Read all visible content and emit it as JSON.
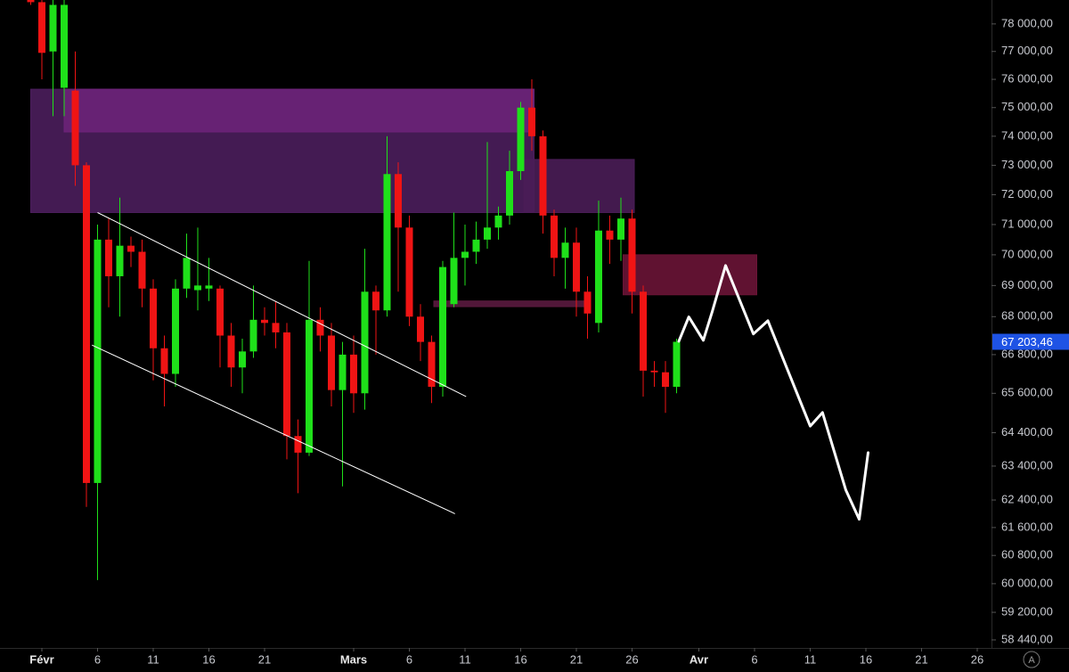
{
  "chart_data": {
    "type": "candlestick",
    "log_scale": true,
    "up_color": "#1fe01a",
    "down_color": "#f01414",
    "x": [
      -1,
      0,
      1,
      2,
      3,
      4,
      5,
      6,
      7,
      8,
      9,
      10,
      11,
      12,
      13,
      14,
      15,
      16,
      17,
      18,
      19,
      20,
      21,
      22,
      23,
      24,
      25,
      26,
      27,
      28,
      29,
      30,
      31,
      32,
      33,
      34,
      35,
      36,
      37,
      38,
      39,
      40,
      41,
      42,
      43,
      44,
      45,
      46,
      47,
      48,
      49,
      50,
      51,
      52,
      53,
      54,
      55,
      56,
      57
    ],
    "open": [
      78950,
      78800,
      77000,
      75700,
      75600,
      73000,
      62900,
      70500,
      69300,
      70300,
      70100,
      68900,
      67000,
      66200,
      68900,
      68850,
      68900,
      68900,
      67400,
      66400,
      66900,
      67900,
      67800,
      67500,
      64300,
      63800,
      67900,
      67400,
      65700,
      66800,
      65600,
      68800,
      68200,
      72700,
      70900,
      68000,
      67200,
      65800,
      68400,
      69900,
      70100,
      70500,
      70900,
      71300,
      72800,
      75000,
      74000,
      71300,
      69900,
      70400,
      68800,
      67800,
      70800,
      70500,
      71200,
      68800,
      66300,
      66250,
      65800
    ],
    "high": [
      79100,
      79000,
      79000,
      79000,
      77000,
      73100,
      71000,
      71200,
      71900,
      70600,
      70500,
      69200,
      67400,
      69200,
      70700,
      70900,
      69900,
      69000,
      67800,
      67300,
      69000,
      68300,
      68500,
      67800,
      64800,
      69800,
      68300,
      67800,
      67200,
      67400,
      70200,
      69000,
      74000,
      73100,
      71300,
      68400,
      67400,
      69800,
      71400,
      71000,
      71100,
      73800,
      71600,
      73500,
      75200,
      76000,
      74200,
      71500,
      70900,
      70900,
      69300,
      71800,
      71300,
      71900,
      71500,
      69000,
      66600,
      66600,
      67300
    ],
    "low": [
      78700,
      76000,
      74700,
      74700,
      72300,
      62200,
      60100,
      68300,
      68000,
      69600,
      68300,
      66000,
      65200,
      65800,
      68600,
      68200,
      68500,
      66400,
      65800,
      65600,
      66700,
      67400,
      67000,
      63600,
      62600,
      63700,
      66900,
      65200,
      62800,
      65000,
      65100,
      66800,
      68000,
      68800,
      67700,
      66600,
      65300,
      65500,
      68300,
      69000,
      69700,
      70200,
      70500,
      71000,
      72500,
      73500,
      70700,
      69300,
      68900,
      68000,
      67300,
      67500,
      69700,
      69800,
      68100,
      65500,
      65800,
      65000,
      65600
    ],
    "close": [
      78800,
      76950,
      78700,
      78700,
      73000,
      62900,
      70500,
      69300,
      70300,
      70100,
      68900,
      67000,
      66200,
      68900,
      69900,
      69000,
      69000,
      67400,
      66400,
      66900,
      67900,
      67800,
      67500,
      64300,
      63800,
      67900,
      67400,
      65700,
      66800,
      65600,
      68800,
      68200,
      72700,
      70900,
      68000,
      67200,
      65800,
      69600,
      69900,
      70100,
      70500,
      70900,
      71300,
      72800,
      75000,
      74000,
      71300,
      69900,
      70400,
      68800,
      68100,
      70800,
      70500,
      71200,
      68800,
      66300,
      66250,
      65800,
      67203.46
    ],
    "xlim": [
      -3.76,
      85.2
    ],
    "ylim": [
      58220,
      78880
    ],
    "xticks": [
      {
        "value": 0,
        "label": "Févr"
      },
      {
        "value": 5,
        "label": "6"
      },
      {
        "value": 10,
        "label": "11"
      },
      {
        "value": 15,
        "label": "16"
      },
      {
        "value": 20,
        "label": "21"
      },
      {
        "value": 28,
        "label": "Mars"
      },
      {
        "value": 33,
        "label": "6"
      },
      {
        "value": 38,
        "label": "11"
      },
      {
        "value": 43,
        "label": "16"
      },
      {
        "value": 48,
        "label": "21"
      },
      {
        "value": 53,
        "label": "26"
      },
      {
        "value": 59,
        "label": "Avr"
      },
      {
        "value": 64,
        "label": "6"
      },
      {
        "value": 69,
        "label": "11"
      },
      {
        "value": 74,
        "label": "16"
      },
      {
        "value": 79,
        "label": "21"
      },
      {
        "value": 84,
        "label": "26"
      }
    ],
    "yticks": [
      {
        "value": 78000,
        "label": "78 000,00"
      },
      {
        "value": 77000,
        "label": "77 000,00"
      },
      {
        "value": 76000,
        "label": "76 000,00"
      },
      {
        "value": 75000,
        "label": "75 000,00"
      },
      {
        "value": 74000,
        "label": "74 000,00"
      },
      {
        "value": 73000,
        "label": "73 000,00"
      },
      {
        "value": 72000,
        "label": "72 000,00"
      },
      {
        "value": 71000,
        "label": "71 000,00"
      },
      {
        "value": 70000,
        "label": "70 000,00"
      },
      {
        "value": 69000,
        "label": "69 000,00"
      },
      {
        "value": 68000,
        "label": "68 000,00"
      },
      {
        "value": 66800,
        "label": "66 800,00"
      },
      {
        "value": 65600,
        "label": "65 600,00"
      },
      {
        "value": 64400,
        "label": "64 400,00"
      },
      {
        "value": 63400,
        "label": "63 400,00"
      },
      {
        "value": 62400,
        "label": "62 400,00"
      },
      {
        "value": 61600,
        "label": "61 600,00"
      },
      {
        "value": 60800,
        "label": "60 800,00"
      },
      {
        "value": 60000,
        "label": "60 000,00"
      },
      {
        "value": 59200,
        "label": "59 200,00"
      },
      {
        "value": 58440,
        "label": "58 440,00"
      }
    ],
    "last_price": {
      "value": 67203.46,
      "label": "67 203,46",
      "color": "#1e53e5"
    },
    "zones": [
      {
        "x0": -1,
        "x1": 44.2,
        "y0": 75650,
        "y1": 71400,
        "color": "#4b1e5c"
      },
      {
        "x0": 2,
        "x1": 44.2,
        "y0": 75650,
        "y1": 74150,
        "color": "#6c2378"
      },
      {
        "x0": 43.3,
        "x1": 53.2,
        "y0": 73200,
        "y1": 71400,
        "color": "#4a1d57"
      },
      {
        "x0": 52.2,
        "x1": 64.2,
        "y0": 70000,
        "y1": 68700,
        "color": "#6a1436"
      },
      {
        "x0": 35.2,
        "x1": 49,
        "y0": 68500,
        "y1": 68320,
        "color": "#5a1a3f"
      }
    ],
    "trend_lines": [
      {
        "x": [
          5.0,
          38.1
        ],
        "y": [
          71400,
          65500
        ],
        "color": "#ffffff"
      },
      {
        "x": [
          4.5,
          37.1
        ],
        "y": [
          67100,
          62000
        ],
        "color": "#ffffff"
      }
    ],
    "projection": {
      "color": "#ffffff",
      "x": [
        57.2,
        58.1,
        59.4,
        60.2,
        61.4,
        63.9,
        65.2,
        66.8,
        69.0,
        70.1,
        72.2,
        73.4,
        74.2
      ],
      "y": [
        67220,
        67990,
        67250,
        68160,
        69650,
        67450,
        67870,
        66470,
        64600,
        65010,
        62690,
        61840,
        63800
      ]
    },
    "auto_scale_button": "A"
  }
}
